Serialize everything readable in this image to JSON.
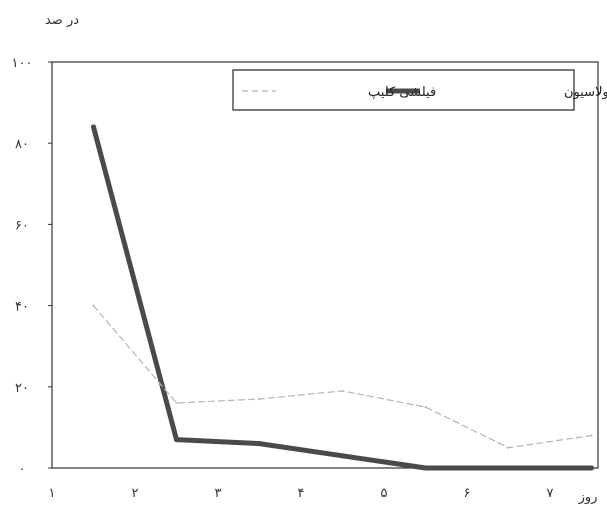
{
  "chart_data": {
    "type": "line",
    "ylabel": "در صد",
    "xlabel": "روز",
    "y_ticks": [
      "۰",
      "۲۰",
      "۴۰",
      "۶۰",
      "۸۰",
      "۱۰۰"
    ],
    "y_tick_values": [
      0,
      20,
      40,
      60,
      80,
      100
    ],
    "x_ticks": [
      "۱",
      "۲",
      "۳",
      "۴",
      "۵",
      "۶",
      "۷"
    ],
    "x_tick_values": [
      1,
      2,
      3,
      4,
      5,
      6,
      7
    ],
    "ylim": [
      0,
      100
    ],
    "xlim": [
      1,
      7.5
    ],
    "grid": false,
    "legend_position": "top-right",
    "series": [
      {
        "name": "الکتروکواگولاسیون",
        "color": "#4a4a4a",
        "style": "solid-thick",
        "x": [
          1.5,
          2.5,
          3.5,
          4.5,
          5.5,
          6.5,
          7.5
        ],
        "y": [
          84,
          7,
          6,
          3,
          0,
          0,
          0
        ]
      },
      {
        "name": "فیلشی کلیپ",
        "color": "#b5b5b5",
        "style": "dashed-thin",
        "x": [
          1.5,
          2.5,
          3.5,
          4.5,
          5.5,
          6.5,
          7.5
        ],
        "y": [
          40,
          16,
          17,
          19,
          15,
          5,
          8
        ]
      }
    ]
  }
}
